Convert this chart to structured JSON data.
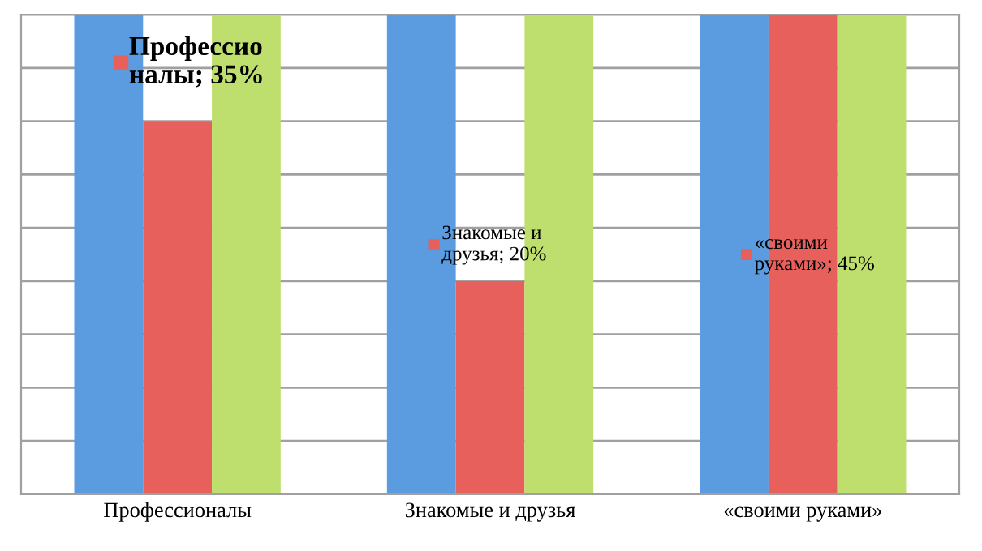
{
  "chart_data": {
    "type": "bar",
    "categories": [
      "Профессионалы",
      "Знакомые и друзья",
      "«своими руками»"
    ],
    "series": [
      {
        "color": "#5b9be0",
        "values": [
          45,
          45,
          45
        ]
      },
      {
        "color": "#e8605c",
        "values": [
          35,
          20,
          45
        ],
        "value_labels": [
          "Профессио\nналы; 35%",
          "Знакомые и\nдрузья; 20%",
          "«своими\nруками»; 45%"
        ]
      },
      {
        "color": "#bedf6d",
        "values": [
          45,
          45,
          45
        ]
      }
    ],
    "ylim": [
      0,
      45
    ],
    "yticks": [
      {
        "value": 0,
        "label": null
      },
      {
        "value": 5,
        "label": null
      },
      {
        "value": 10,
        "label": null
      },
      {
        "value": 15,
        "label": null
      },
      {
        "value": 20,
        "label": null
      },
      {
        "value": 25,
        "label": null
      },
      {
        "value": 30,
        "label": null
      },
      {
        "value": 35,
        "label": null
      },
      {
        "value": 40,
        "label": null
      },
      {
        "value": 45,
        "label": null
      }
    ],
    "grid": "y",
    "tick_labels": "x",
    "legend": false
  }
}
